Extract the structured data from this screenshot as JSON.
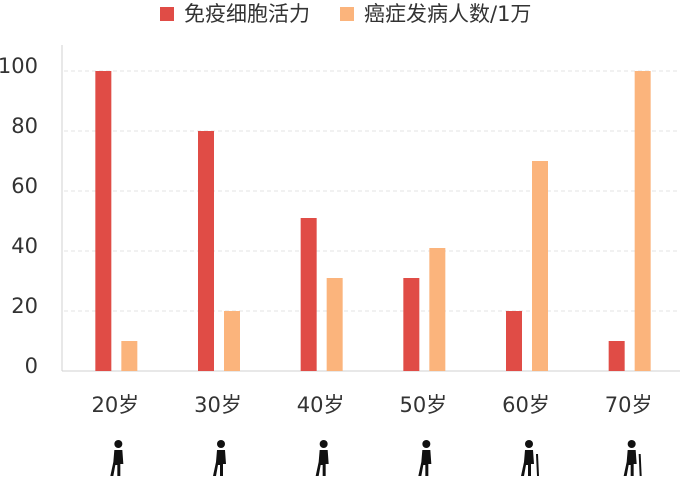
{
  "chart_data": {
    "type": "bar",
    "categories": [
      "20岁",
      "30岁",
      "40岁",
      "50岁",
      "60岁",
      "70岁"
    ],
    "series": [
      {
        "name": "免疫细胞活力",
        "color": "#e04c46",
        "values": [
          100,
          80,
          51,
          31,
          20,
          10
        ]
      },
      {
        "name": "癌症发病人数/1万",
        "color": "#fbb47c",
        "values": [
          10,
          20,
          31,
          41,
          70,
          100
        ]
      }
    ],
    "ylim": [
      0,
      110
    ],
    "yticks": [
      0,
      20,
      40,
      60,
      80,
      100
    ],
    "grid": true,
    "legend": "top"
  }
}
